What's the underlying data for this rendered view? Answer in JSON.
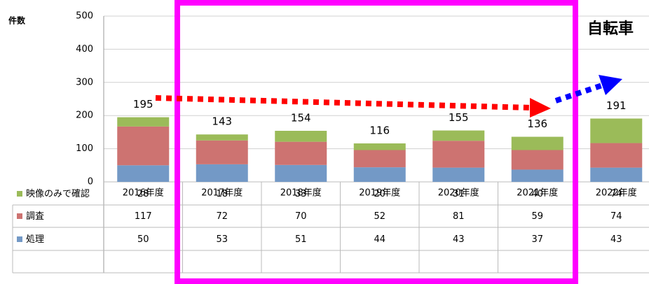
{
  "chart_data": {
    "type": "stacked_bar",
    "title": "自転車",
    "y_label": "件数",
    "categories": [
      "2016年度",
      "2017年度",
      "2018年度",
      "2019年度",
      "2020年度",
      "2021年度",
      "2022年度"
    ],
    "series": [
      {
        "name": "処理",
        "color": "#7399c6",
        "values": [
          50,
          53,
          51,
          44,
          43,
          37,
          43
        ]
      },
      {
        "name": "調査",
        "color": "#cd7371",
        "values": [
          117,
          72,
          70,
          52,
          81,
          59,
          74
        ]
      },
      {
        "name": "映像のみで確認",
        "color": "#9bbb59",
        "values": [
          28,
          18,
          33,
          20,
          31,
          40,
          74
        ]
      }
    ],
    "totals": [
      195,
      143,
      154,
      116,
      155,
      136,
      191
    ],
    "ylim": [
      0,
      500
    ],
    "yticks": [
      0,
      100,
      200,
      300,
      400,
      500
    ],
    "grid": true
  }
}
